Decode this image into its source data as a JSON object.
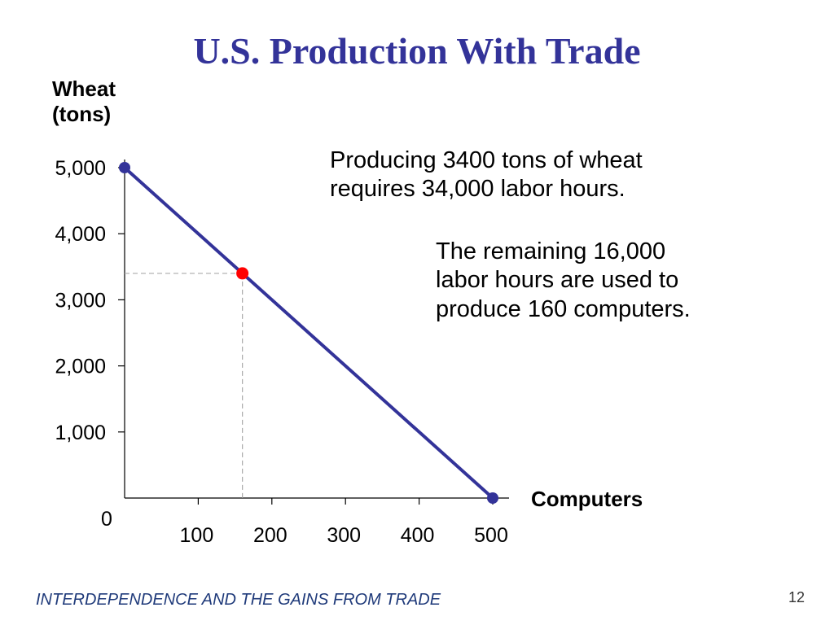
{
  "title": "U.S. Production With Trade",
  "footer": "INTERDEPENDENCE AND THE GAINS FROM TRADE",
  "slide_number": "12",
  "annotations": {
    "line1": [
      "Producing 3400 tons of wheat",
      "requires 34,000 labor hours."
    ],
    "line2": [
      "The remaining 16,000",
      "labor hours are used to",
      "produce 160 computers."
    ]
  },
  "colors": {
    "title": "#333399",
    "frontier": "#333399",
    "endpoint": "#333399",
    "highlight_point": "#ff0000",
    "guide": "#aaaaaa"
  },
  "chart_data": {
    "type": "line",
    "ylabel": [
      "Wheat",
      "(tons)"
    ],
    "xlabel": "Computers",
    "origin_label": "0",
    "xlim": [
      0,
      500
    ],
    "ylim": [
      0,
      5000
    ],
    "x_ticks": [
      100,
      200,
      300,
      400,
      500
    ],
    "x_tick_labels": [
      "100",
      "200",
      "300",
      "400",
      "500"
    ],
    "y_ticks": [
      1000,
      2000,
      3000,
      4000,
      5000
    ],
    "y_tick_labels": [
      "1,000",
      "2,000",
      "3,000",
      "4,000",
      "5,000"
    ],
    "series": [
      {
        "points": [
          [
            0,
            5000
          ],
          [
            500,
            0
          ]
        ]
      }
    ],
    "endpoints": [
      [
        0,
        5000
      ],
      [
        500,
        0
      ]
    ],
    "highlight": {
      "x": 160,
      "y": 3400
    },
    "grid": false
  }
}
